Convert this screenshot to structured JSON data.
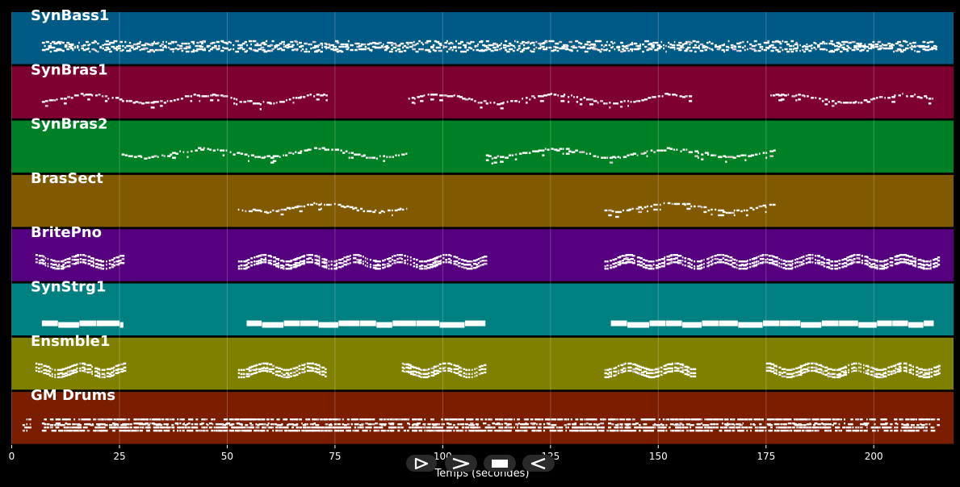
{
  "window": {
    "background": "#000000"
  },
  "axis": {
    "label": "Temps (secondes)",
    "min": 0,
    "max": 218.5,
    "ticks": [
      0,
      25,
      50,
      75,
      100,
      125,
      150,
      175,
      200
    ],
    "tick_labels": [
      "0",
      "25",
      "50",
      "75",
      "100",
      "125",
      "150",
      "175",
      "200"
    ]
  },
  "tracks": [
    {
      "name": "SynBass1",
      "color": "#005a86",
      "style": "dense",
      "segments": [
        [
          7,
          214.5
        ]
      ]
    },
    {
      "name": "SynBras1",
      "color": "#7d0030",
      "style": "melody",
      "segments": [
        [
          7,
          73
        ],
        [
          92,
          158
        ],
        [
          176,
          214
        ]
      ]
    },
    {
      "name": "SynBras2",
      "color": "#008025",
      "style": "melody",
      "segments": [
        [
          25.5,
          92
        ],
        [
          110,
          177
        ]
      ]
    },
    {
      "name": "BrasSect",
      "color": "#805900",
      "style": "melody",
      "segments": [
        [
          52.5,
          92
        ],
        [
          137.5,
          177
        ]
      ]
    },
    {
      "name": "BritePno",
      "color": "#55007e",
      "style": "chords",
      "segments": [
        [
          5.5,
          26
        ],
        [
          52.5,
          110
        ],
        [
          137.5,
          215
        ]
      ]
    },
    {
      "name": "SynStrg1",
      "color": "#008080",
      "style": "pad",
      "segments": [
        [
          7,
          26
        ],
        [
          54.5,
          110
        ],
        [
          139,
          214
        ]
      ]
    },
    {
      "name": "Ensmble1",
      "color": "#808000",
      "style": "chords",
      "segments": [
        [
          5.5,
          26
        ],
        [
          52.5,
          73
        ],
        [
          90.5,
          110
        ],
        [
          137.5,
          158
        ],
        [
          175,
          215
        ]
      ]
    },
    {
      "name": "GM Drums",
      "color": "#7b1e00",
      "style": "drums",
      "segments": [
        [
          2.5,
          4.5
        ],
        [
          7,
          215
        ]
      ]
    }
  ],
  "controls": [
    {
      "name": "play-outline-button",
      "icon": "play-outline-icon"
    },
    {
      "name": "forward-button",
      "icon": "chevron-right-icon"
    },
    {
      "name": "stop-button",
      "icon": "stop-icon"
    },
    {
      "name": "back-button",
      "icon": "back-triangle-icon"
    }
  ]
}
